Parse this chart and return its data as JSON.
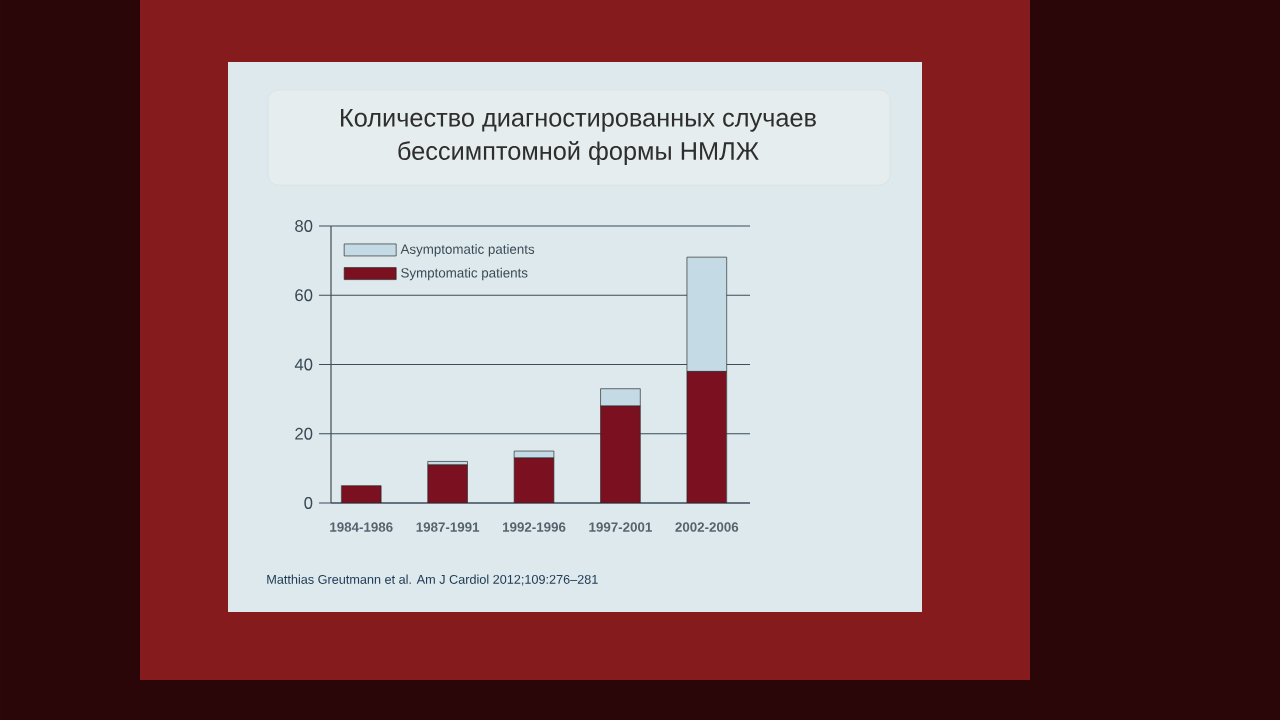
{
  "chart_data": {
    "type": "bar",
    "title": "Количество диагностированных случаев бессимптомной формы НМЛЖ",
    "categories": [
      "1984-1986",
      "1987-1991",
      "1992-1996",
      "1997-2001",
      "2002-2006"
    ],
    "stacked": true,
    "series": [
      {
        "name": "Symptomatic patients",
        "color": "#7a1020",
        "values": [
          5,
          11,
          13,
          28,
          38
        ]
      },
      {
        "name": "Asymptomatic patients",
        "color": "#c4dbe6",
        "values": [
          0,
          1,
          2,
          5,
          33
        ]
      }
    ],
    "ylim": [
      0,
      80
    ],
    "yticks": [
      0,
      20,
      40,
      60,
      80
    ],
    "grid": "y",
    "legend": "top left",
    "annotations": [
      "Matthias Greutmann et al.  Am J Cardiol 2012;109:276–281"
    ]
  }
}
